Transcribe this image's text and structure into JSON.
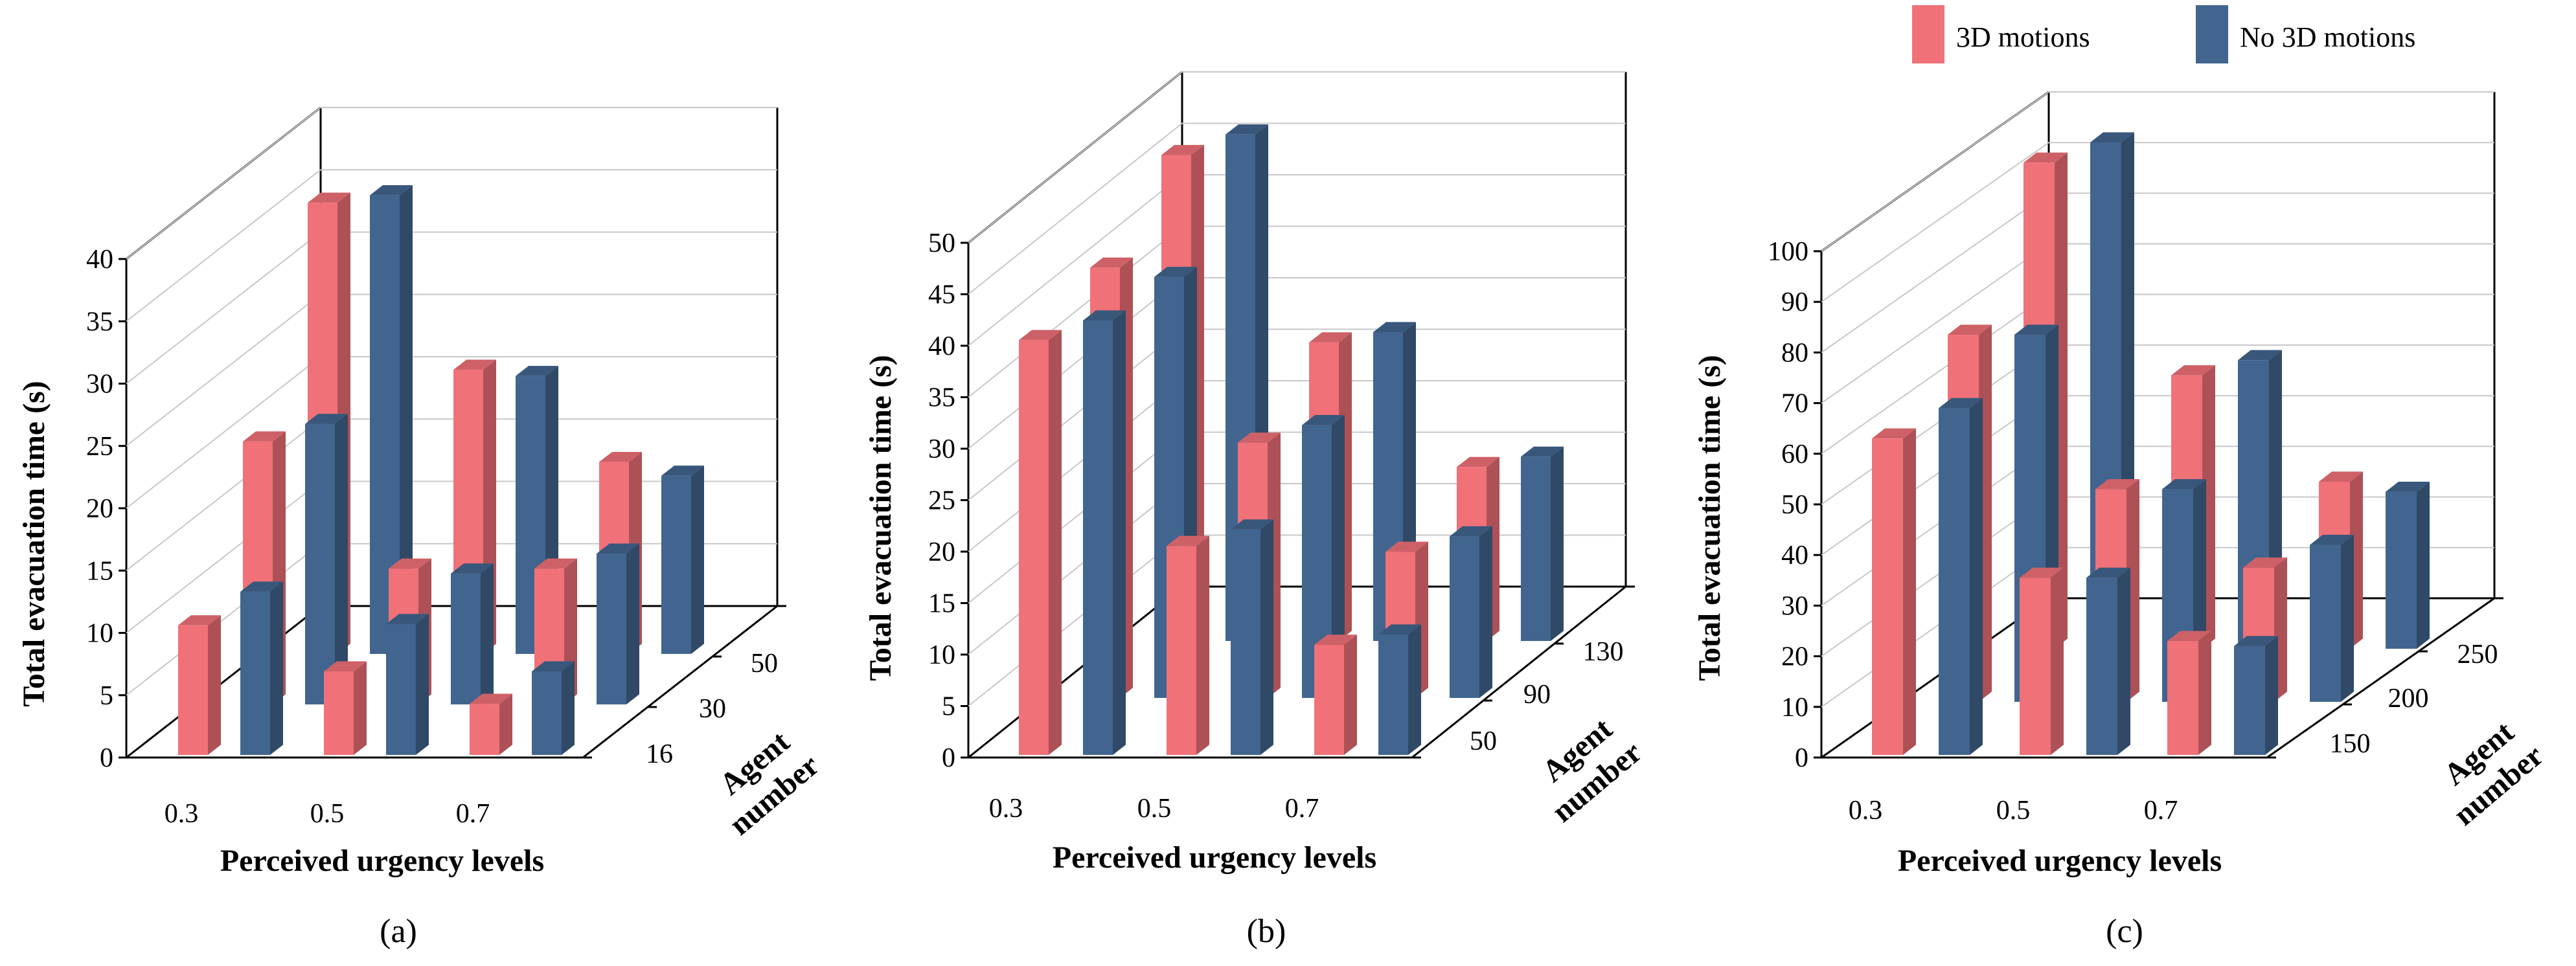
{
  "legend": {
    "items": [
      {
        "label": "3D motions",
        "color": "#F07178"
      },
      {
        "label": "No 3D motions",
        "color": "#41658F"
      }
    ]
  },
  "chart_data": [
    {
      "type": "bar3d",
      "caption": "(a)",
      "ylabel": "Total evacuation time (s)",
      "xlabel": "Perceived urgency levels",
      "zlabel": [
        "Agent",
        "number"
      ],
      "ylim": [
        0,
        40
      ],
      "yticks": [
        "0",
        "5",
        "10",
        "15",
        "20",
        "25",
        "30",
        "35",
        "40"
      ],
      "categories": [
        "0.3",
        "0.5",
        "0.7"
      ],
      "depth_labels": [
        "16",
        "30",
        "50"
      ],
      "series": [
        {
          "name": "3D motions",
          "values": [
            [
              10.4,
              6.7,
              4.1
            ],
            [
              21.1,
              10.9,
              10.9
            ],
            [
              36.2,
              22.8,
              15.4
            ]
          ]
        },
        {
          "name": "No 3D motions",
          "values": [
            [
              13.1,
              10.5,
              6.7
            ],
            [
              22.5,
              10.5,
              12.1
            ],
            [
              36.8,
              22.3,
              14.3
            ]
          ]
        }
      ]
    },
    {
      "type": "bar3d",
      "caption": "(b)",
      "ylabel": "Total evacuation time (s)",
      "xlabel": "Perceived urgency levels",
      "zlabel": [
        "Agent",
        "number"
      ],
      "ylim": [
        0,
        50
      ],
      "yticks": [
        "0",
        "5",
        "10",
        "15",
        "20",
        "25",
        "30",
        "35",
        "40",
        "45",
        "50"
      ],
      "categories": [
        "0.3",
        "0.5",
        "0.7"
      ],
      "depth_labels": [
        "50",
        "90",
        "130"
      ],
      "series": [
        {
          "name": "3D motions",
          "values": [
            [
              40.3,
              20.3,
              10.7
            ],
            [
              41.8,
              24.8,
              14.2
            ],
            [
              47.2,
              29.0,
              16.9
            ]
          ]
        },
        {
          "name": "No 3D motions",
          "values": [
            [
              42.2,
              21.9,
              11.7
            ],
            [
              40.9,
              26.5,
              15.7
            ],
            [
              49.2,
              30.0,
              17.9
            ]
          ]
        }
      ]
    },
    {
      "type": "bar3d",
      "caption": "(c)",
      "ylabel": "Total evacuation time (s)",
      "xlabel": "Perceived urgency levels",
      "zlabel": [
        "Agent",
        "number"
      ],
      "ylim": [
        0,
        100
      ],
      "yticks": [
        "0",
        "10",
        "20",
        "30",
        "40",
        "50",
        "60",
        "70",
        "80",
        "90",
        "100"
      ],
      "categories": [
        "0.3",
        "0.5",
        "0.7"
      ],
      "depth_labels": [
        "150",
        "200",
        "250"
      ],
      "series": [
        {
          "name": "3D motions",
          "values": [
            [
              62.5,
              35.0,
              22.5
            ],
            [
              72.5,
              42.0,
              26.5
            ],
            [
              96.0,
              54.0,
              33.0
            ]
          ]
        },
        {
          "name": "No 3D motions",
          "values": [
            [
              68.5,
              35.0,
              21.5
            ],
            [
              72.5,
              42.0,
              31.0
            ],
            [
              100.0,
              57.0,
              31.0
            ]
          ]
        }
      ]
    }
  ]
}
